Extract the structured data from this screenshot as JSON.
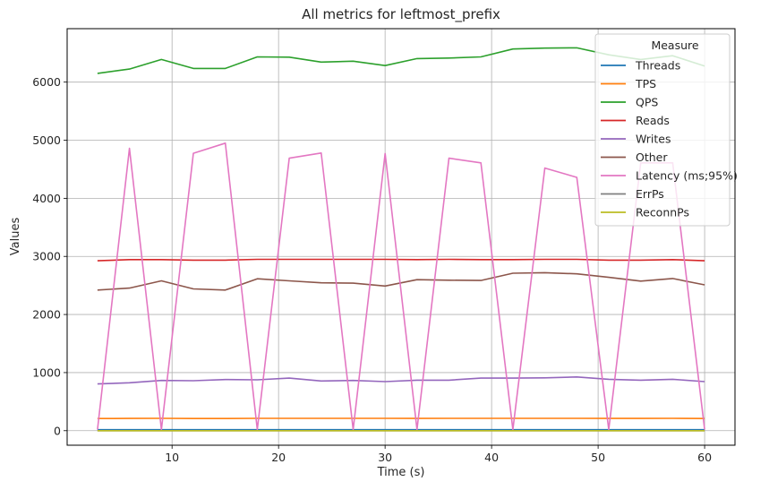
{
  "chart_data": {
    "type": "line",
    "title": "All metrics for leftmost_prefix",
    "xlabel": "Time (s)",
    "ylabel": "Values",
    "xlim": [
      0.15,
      62.85
    ],
    "ylim": [
      -250,
      6920
    ],
    "xticks": [
      10,
      20,
      30,
      40,
      50,
      60
    ],
    "yticks": [
      0,
      1000,
      2000,
      3000,
      4000,
      5000,
      6000
    ],
    "grid": true,
    "legend": {
      "title": "Measure",
      "placement": "top-right"
    },
    "x": [
      3,
      6,
      9,
      12,
      15,
      18,
      21,
      24,
      27,
      30,
      33,
      36,
      39,
      42,
      45,
      48,
      51,
      54,
      57,
      60
    ],
    "series": [
      {
        "name": "Threads",
        "color": "#1f77b4",
        "values": [
          16,
          16,
          16,
          16,
          16,
          16,
          16,
          16,
          16,
          16,
          16,
          16,
          16,
          16,
          16,
          16,
          16,
          16,
          16,
          16
        ]
      },
      {
        "name": "TPS",
        "color": "#ff7f0e",
        "values": [
          210,
          211,
          213,
          210,
          210,
          212,
          212,
          212,
          212,
          213,
          211,
          212,
          212,
          212,
          212,
          213,
          211,
          211,
          212,
          210
        ]
      },
      {
        "name": "QPS",
        "color": "#2ca02c",
        "values": [
          6150,
          6225,
          6390,
          6235,
          6235,
          6435,
          6430,
          6345,
          6360,
          6285,
          6405,
          6415,
          6435,
          6570,
          6585,
          6590,
          6470,
          6390,
          6455,
          6275
        ]
      },
      {
        "name": "Reads",
        "color": "#d62728",
        "values": [
          2925,
          2945,
          2945,
          2935,
          2935,
          2950,
          2950,
          2950,
          2950,
          2950,
          2945,
          2950,
          2945,
          2945,
          2950,
          2950,
          2935,
          2935,
          2945,
          2925
        ]
      },
      {
        "name": "Writes",
        "color": "#9467bd",
        "values": [
          805,
          825,
          865,
          860,
          880,
          875,
          905,
          855,
          865,
          845,
          870,
          870,
          905,
          905,
          910,
          925,
          885,
          870,
          885,
          845
        ]
      },
      {
        "name": "Other",
        "color": "#8c564b",
        "values": [
          2420,
          2455,
          2580,
          2440,
          2420,
          2615,
          2580,
          2545,
          2540,
          2490,
          2600,
          2590,
          2585,
          2710,
          2720,
          2700,
          2640,
          2575,
          2620,
          2510
        ]
      },
      {
        "name": "Latency (ms;95%)",
        "color": "#e377c2",
        "values": [
          20,
          4860,
          20,
          4775,
          4950,
          20,
          4690,
          4780,
          20,
          4770,
          20,
          4690,
          4610,
          20,
          4520,
          4360,
          20,
          4610,
          4610,
          20
        ]
      },
      {
        "name": "ErrPs",
        "color": "#7f7f7f",
        "values": [
          0,
          0,
          0,
          0,
          0,
          0,
          0,
          0,
          0,
          0,
          0,
          0,
          0,
          0,
          0,
          0,
          0,
          0,
          0,
          0
        ]
      },
      {
        "name": "ReconnPs",
        "color": "#bcbd22",
        "values": [
          0,
          0,
          0,
          0,
          0,
          0,
          0,
          0,
          0,
          0,
          0,
          0,
          0,
          0,
          0,
          0,
          0,
          0,
          0,
          0
        ]
      }
    ]
  }
}
